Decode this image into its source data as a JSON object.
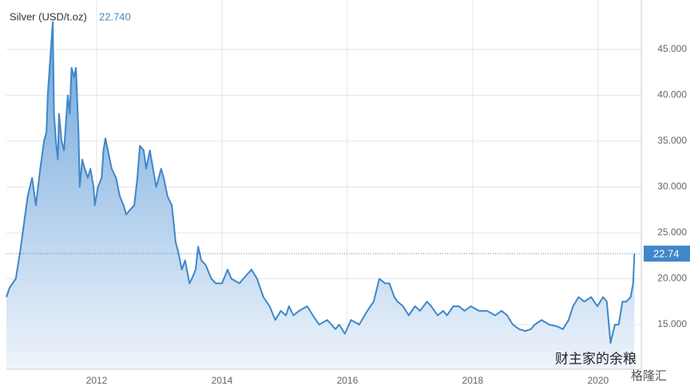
{
  "chart_data": {
    "type": "area",
    "title": "Silver (USD/t.oz)",
    "price_text": "22.740",
    "current_value": 22.74,
    "color": "#3f87c9",
    "x": [
      2010.56,
      2010.61,
      2010.71,
      2010.78,
      2010.84,
      2010.9,
      2010.97,
      2011.03,
      2011.1,
      2011.16,
      2011.2,
      2011.22,
      2011.26,
      2011.3,
      2011.32,
      2011.35,
      2011.38,
      2011.4,
      2011.44,
      2011.48,
      2011.52,
      2011.54,
      2011.57,
      2011.6,
      2011.64,
      2011.67,
      2011.71,
      2011.73,
      2011.77,
      2011.81,
      2011.86,
      2011.9,
      2011.95,
      2011.97,
      2012.02,
      2012.08,
      2012.11,
      2012.14,
      2012.18,
      2012.24,
      2012.31,
      2012.37,
      2012.43,
      2012.47,
      2012.53,
      2012.6,
      2012.65,
      2012.69,
      2012.75,
      2012.79,
      2012.85,
      2012.9,
      2012.95,
      2013.03,
      2013.07,
      2013.13,
      2013.2,
      2013.26,
      2013.3,
      2013.36,
      2013.41,
      2013.48,
      2013.52,
      2013.58,
      2013.62,
      2013.67,
      2013.74,
      2013.83,
      2013.9,
      2014.0,
      2014.09,
      2014.15,
      2014.28,
      2014.34,
      2014.47,
      2014.56,
      2014.66,
      2014.76,
      2014.85,
      2014.94,
      2015.02,
      2015.07,
      2015.14,
      2015.23,
      2015.36,
      2015.45,
      2015.55,
      2015.68,
      2015.81,
      2015.87,
      2015.96,
      2016.06,
      2016.19,
      2016.32,
      2016.42,
      2016.51,
      2016.6,
      2016.67,
      2016.75,
      2016.8,
      2016.89,
      2016.98,
      2017.08,
      2017.16,
      2017.27,
      2017.34,
      2017.44,
      2017.53,
      2017.59,
      2017.69,
      2017.78,
      2017.87,
      2017.97,
      2018.1,
      2018.23,
      2018.36,
      2018.46,
      2018.55,
      2018.64,
      2018.74,
      2018.84,
      2018.93,
      2018.99,
      2019.1,
      2019.22,
      2019.35,
      2019.44,
      2019.53,
      2019.6,
      2019.69,
      2019.78,
      2019.89,
      2019.99,
      2020.08,
      2020.14,
      2020.2,
      2020.27,
      2020.33,
      2020.39,
      2020.45,
      2020.52,
      2020.56,
      2020.58
    ],
    "values": [
      18,
      19,
      20,
      23,
      26,
      29,
      31,
      28,
      32,
      35,
      36,
      40,
      44,
      48,
      38,
      35,
      33,
      38,
      35,
      34,
      38,
      40,
      38,
      43,
      42,
      43,
      36,
      30,
      33,
      32,
      31,
      32,
      30,
      28,
      30,
      31,
      34,
      35.3,
      34,
      32,
      31,
      29,
      28,
      27,
      27.5,
      28,
      31,
      34.5,
      34,
      32,
      34,
      32,
      30,
      32,
      31,
      29,
      28,
      24,
      23,
      21,
      22,
      19.5,
      20,
      21,
      23.5,
      22,
      21.5,
      20,
      19.5,
      19.5,
      21,
      20,
      19.5,
      20,
      21,
      20,
      18,
      17,
      15.5,
      16.5,
      16,
      17,
      16,
      16.5,
      17,
      16,
      15,
      15.5,
      14.5,
      15,
      14,
      15.5,
      15,
      16.5,
      17.5,
      20,
      19.5,
      19.5,
      18,
      17.5,
      17,
      16,
      17,
      16.5,
      17.5,
      17,
      16,
      16.5,
      16,
      17,
      17,
      16.5,
      17,
      16.5,
      16.5,
      16,
      16.5,
      16,
      15,
      14.5,
      14.3,
      14.5,
      15,
      15.5,
      15,
      14.8,
      14.5,
      15.5,
      17,
      18,
      17.5,
      18,
      17,
      18,
      17.5,
      13,
      15,
      15,
      17.5,
      17.5,
      18,
      19.5,
      22.74
    ],
    "xlim": [
      2010.56,
      2020.69
    ],
    "xticks": [
      2012,
      2014,
      2016,
      2018,
      2020
    ],
    "ylim": [
      10.13,
      50.39
    ],
    "yticks": [
      {
        "value": 15,
        "label": "15.000"
      },
      {
        "value": 20,
        "label": "20.000"
      },
      {
        "value": 25,
        "label": "25.000"
      },
      {
        "value": 30,
        "label": "30.000"
      },
      {
        "value": 35,
        "label": "35.000"
      },
      {
        "value": 40,
        "label": "40.000"
      },
      {
        "value": 45,
        "label": "45.000"
      }
    ],
    "grid": true,
    "watermark": "财主家的余粮",
    "watermark_brand": "格隆汇"
  }
}
